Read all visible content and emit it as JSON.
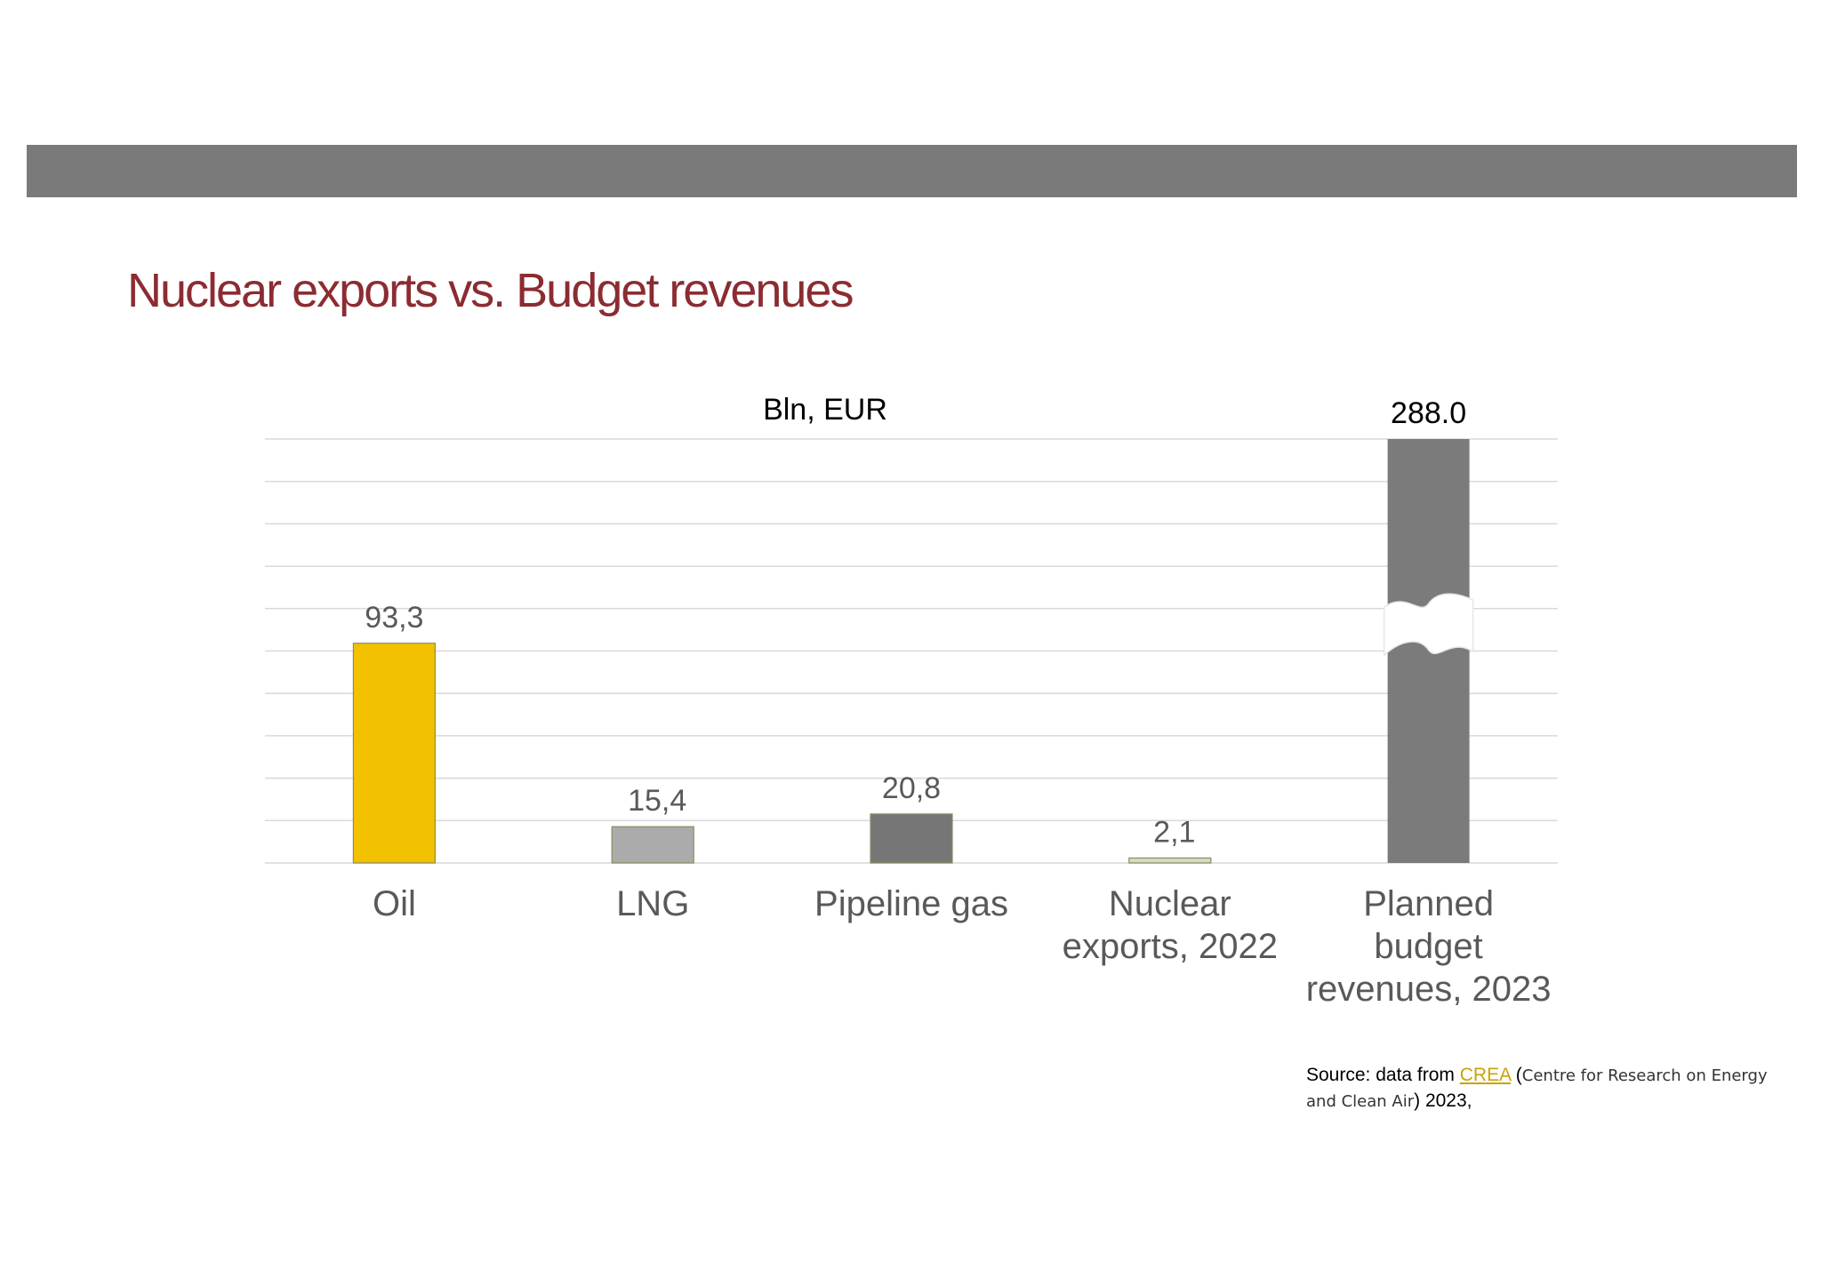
{
  "title": "Nuclear exports vs. Budget revenues",
  "colors": {
    "band": "#7a7a7a",
    "title": "#8b2c32",
    "grid": "#d9d9d9",
    "axis_text": "#595959",
    "link": "#c9a20a"
  },
  "chart_data": {
    "type": "bar",
    "unit_label": "Bln, EUR",
    "categories": [
      "Oil",
      "LNG",
      "Pipeline gas",
      "Nuclear exports, 2022",
      "Planned budget revenues, 2023"
    ],
    "category_lines": [
      [
        "Oil"
      ],
      [
        "LNG"
      ],
      [
        "Pipeline gas"
      ],
      [
        "Nuclear",
        "exports, 2022"
      ],
      [
        "Planned",
        "budget",
        "revenues, 2023"
      ]
    ],
    "values": [
      93.3,
      15.4,
      20.8,
      2.1,
      288.0
    ],
    "value_labels": [
      "93,3",
      "15,4",
      "20,8",
      "2,1",
      "288.0"
    ],
    "bar_colors": [
      "#f2c100",
      "#ababab",
      "#767676",
      "#d6d9c8",
      "#7b7b7b"
    ],
    "broken_axis_bar_index": 4,
    "ylim": [
      0,
      180
    ],
    "gridlines": 10,
    "grid": true,
    "legend": "none"
  },
  "source": {
    "prefix": "Source: data from ",
    "link_text": "CREA",
    "paren_open": " (",
    "org": "Centre for Research on Energy and Clean Air",
    "paren_close": ")",
    "suffix": " 2023,"
  }
}
